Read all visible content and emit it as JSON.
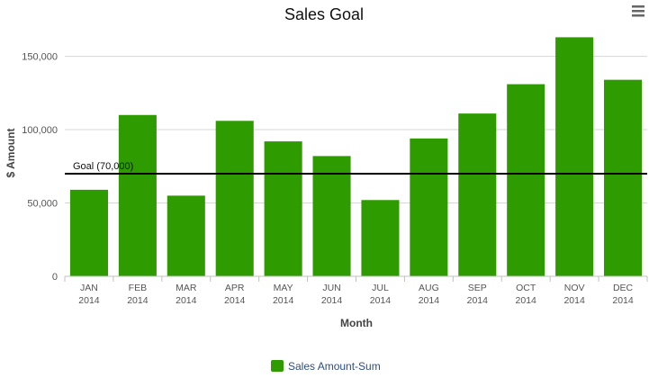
{
  "chart_data": {
    "type": "bar",
    "title": "Sales Goal",
    "xlabel": "Month",
    "ylabel": "$ Amount",
    "categories": [
      "JAN 2014",
      "FEB 2014",
      "MAR 2014",
      "APR 2014",
      "MAY 2014",
      "JUN 2014",
      "JUL 2014",
      "AUG 2014",
      "SEP 2014",
      "OCT 2014",
      "NOV 2014",
      "DEC 2014"
    ],
    "category_lines": [
      [
        "JAN",
        "2014"
      ],
      [
        "FEB",
        "2014"
      ],
      [
        "MAR",
        "2014"
      ],
      [
        "APR",
        "2014"
      ],
      [
        "MAY",
        "2014"
      ],
      [
        "JUN",
        "2014"
      ],
      [
        "JUL",
        "2014"
      ],
      [
        "AUG",
        "2014"
      ],
      [
        "SEP",
        "2014"
      ],
      [
        "OCT",
        "2014"
      ],
      [
        "NOV",
        "2014"
      ],
      [
        "DEC",
        "2014"
      ]
    ],
    "series": [
      {
        "name": "Sales Amount-Sum",
        "color": "#2e9b00",
        "values": [
          59000,
          110000,
          55000,
          106000,
          92000,
          82000,
          52000,
          94000,
          111000,
          131000,
          163000,
          134000
        ]
      }
    ],
    "ylim": [
      0,
      170000
    ],
    "yticks": [
      0,
      50000,
      100000,
      150000
    ],
    "ytick_labels": [
      "0",
      "50,000",
      "100,000",
      "150,000"
    ],
    "goal": {
      "value": 70000,
      "label": "Goal (70,000)",
      "color": "#000000"
    },
    "grid": true,
    "legend": "bottom-center"
  },
  "toolbar": {
    "menu_icon": "hamburger-menu-icon"
  }
}
